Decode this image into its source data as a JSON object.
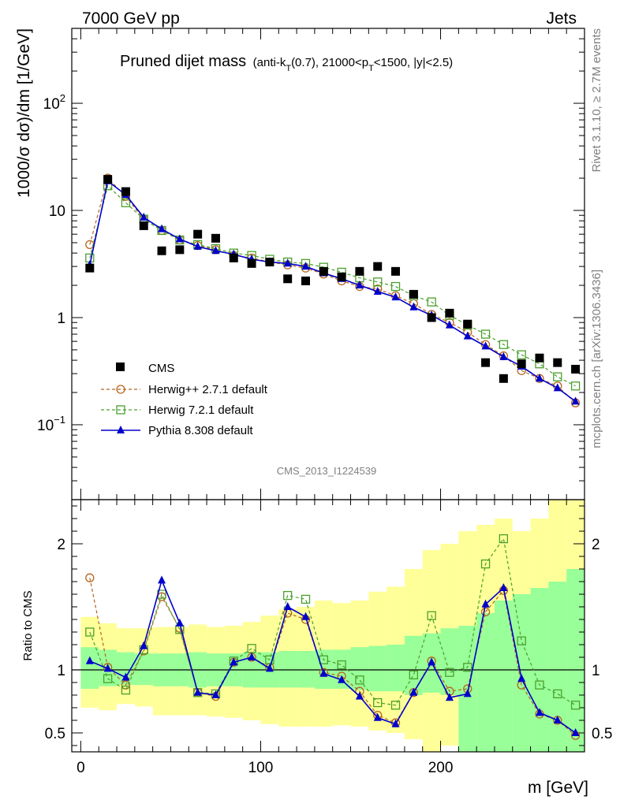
{
  "header": {
    "left": "7000 GeV pp",
    "right": "Jets"
  },
  "side_labels": {
    "rivet": "Rivet 3.1.10, ≥ 2.7M events",
    "mcplots": "mcplots.cern.ch [arXiv:1306.3436]"
  },
  "chart_data": {
    "type": "scatter",
    "title_main": "Pruned dijet mass",
    "title_sub_parts": [
      "(anti-k",
      "T",
      "(0.7), 21000<p",
      "T",
      "<1500, |y|<2.5)"
    ],
    "analysis_id": "CMS_2013_I1224539",
    "xlabel": "m [GeV]",
    "ylabel_top": "1000/σ dσ)/dm [1/GeV]",
    "ylabel_top_prefix": "1000/",
    "ylabel_bottom": "Ratio to CMS",
    "xlim": [
      -5,
      280
    ],
    "ylim_top": [
      0.02,
      500
    ],
    "yscale_top": "log",
    "ylim_ratio": [
      0.35,
      2.35
    ],
    "x_ticks": [
      0,
      100,
      200
    ],
    "x_tick_labels": [
      "0",
      "100",
      "200"
    ],
    "y_top_ticks": [
      {
        "value": 0.1,
        "base": "10",
        "exp": "−1"
      },
      {
        "value": 1,
        "base": "1",
        "exp": ""
      },
      {
        "value": 10,
        "base": "10",
        "exp": ""
      },
      {
        "value": 100,
        "base": "10",
        "exp": "2"
      }
    ],
    "ratio_ticks": [
      {
        "value": 0.5,
        "label": "0.5"
      },
      {
        "value": 1,
        "label": "1"
      },
      {
        "value": 2,
        "label": "2"
      }
    ],
    "legend": {
      "placement": "lower-left",
      "entries": [
        "CMS",
        "Herwig++ 2.7.1 default",
        "Herwig 7.2.1 default",
        "Pythia 8.308 default"
      ]
    },
    "colors": {
      "cms": "#000000",
      "herwigpp": "#b5651d",
      "herwig7": "#4aa02c",
      "pythia": "#0000cc",
      "band_inner": "#99ff99",
      "band_outer": "#ffff99"
    },
    "x": [
      5,
      15,
      25,
      35,
      45,
      55,
      65,
      75,
      85,
      95,
      105,
      115,
      125,
      135,
      145,
      155,
      165,
      175,
      185,
      195,
      205,
      215,
      225,
      235,
      245,
      255,
      265,
      275
    ],
    "bin_edges": [
      0,
      10,
      20,
      30,
      40,
      50,
      60,
      70,
      80,
      90,
      100,
      110,
      120,
      130,
      140,
      150,
      160,
      170,
      180,
      190,
      200,
      210,
      220,
      230,
      240,
      250,
      260,
      270,
      280
    ],
    "series": [
      {
        "name": "CMS",
        "values": [
          2.9,
          19.5,
          15.0,
          7.2,
          4.2,
          4.3,
          6.0,
          5.5,
          3.6,
          3.2,
          3.3,
          2.3,
          2.2,
          2.7,
          2.4,
          2.7,
          3.0,
          2.7,
          1.65,
          1.0,
          1.1,
          0.87,
          0.38,
          0.27,
          0.37,
          0.42,
          0.38,
          0.33
        ]
      },
      {
        "name": "Herwig++ 2.7.1 default",
        "values": [
          4.8,
          20.0,
          13.5,
          8.3,
          6.5,
          5.3,
          4.7,
          4.3,
          3.8,
          3.6,
          3.3,
          3.1,
          2.9,
          2.55,
          2.2,
          1.95,
          1.85,
          1.6,
          1.35,
          1.07,
          0.9,
          0.73,
          0.56,
          0.44,
          0.32,
          0.27,
          0.23,
          0.16
        ]
      },
      {
        "name": "Herwig 7.2.1 default",
        "values": [
          3.6,
          17.0,
          11.8,
          8.3,
          6.5,
          5.3,
          4.8,
          4.4,
          4.0,
          3.8,
          3.5,
          3.3,
          3.2,
          2.95,
          2.65,
          2.35,
          2.15,
          1.95,
          1.6,
          1.4,
          1.05,
          0.85,
          0.7,
          0.56,
          0.45,
          0.37,
          0.28,
          0.23
        ]
      },
      {
        "name": "Pythia 8.308 default",
        "values": [
          3.1,
          18.8,
          14.0,
          8.6,
          6.7,
          5.4,
          4.6,
          4.2,
          3.9,
          3.5,
          3.3,
          3.2,
          3.0,
          2.6,
          2.3,
          2.0,
          1.75,
          1.55,
          1.25,
          1.05,
          0.85,
          0.67,
          0.54,
          0.43,
          0.35,
          0.27,
          0.22,
          0.165
        ]
      }
    ],
    "ratio_series": [
      {
        "name": "Herwig++ 2.7.1 default",
        "values": [
          1.73,
          1.02,
          0.88,
          1.15,
          1.58,
          1.33,
          0.82,
          0.79,
          1.06,
          1.1,
          1.02,
          1.45,
          1.4,
          0.98,
          0.95,
          0.83,
          0.64,
          0.58,
          0.82,
          1.07,
          0.83,
          0.85,
          1.46,
          1.63,
          0.88,
          0.65,
          0.6,
          0.48
        ]
      },
      {
        "name": "Herwig 7.2.1 default",
        "values": [
          1.3,
          0.93,
          0.84,
          1.16,
          1.6,
          1.32,
          0.82,
          0.81,
          1.07,
          1.17,
          1.08,
          1.59,
          1.56,
          1.08,
          1.04,
          0.92,
          0.74,
          0.72,
          0.96,
          1.43,
          0.98,
          1.02,
          1.84,
          2.04,
          1.23,
          0.88,
          0.81,
          0.72
        ]
      },
      {
        "name": "Pythia 8.308 default",
        "values": [
          1.07,
          1.01,
          0.94,
          1.19,
          1.71,
          1.37,
          0.82,
          0.8,
          1.06,
          1.1,
          1.01,
          1.5,
          1.42,
          0.97,
          0.92,
          0.79,
          0.62,
          0.57,
          0.82,
          1.06,
          0.78,
          0.81,
          1.52,
          1.65,
          0.93,
          0.66,
          0.6,
          0.5
        ]
      }
    ],
    "bands": {
      "inner": [
        [
          0.85,
          1.18
        ],
        [
          0.87,
          1.16
        ],
        [
          0.88,
          1.14
        ],
        [
          0.88,
          1.13
        ],
        [
          0.87,
          1.13
        ],
        [
          0.87,
          1.13
        ],
        [
          0.86,
          1.14
        ],
        [
          0.87,
          1.13
        ],
        [
          0.87,
          1.13
        ],
        [
          0.86,
          1.14
        ],
        [
          0.86,
          1.14
        ],
        [
          0.86,
          1.15
        ],
        [
          0.86,
          1.15
        ],
        [
          0.85,
          1.16
        ],
        [
          0.85,
          1.16
        ],
        [
          0.84,
          1.18
        ],
        [
          0.83,
          1.19
        ],
        [
          0.83,
          1.2
        ],
        [
          0.8,
          1.27
        ],
        [
          0.82,
          1.29
        ],
        [
          0.8,
          1.33
        ],
        [
          0.35,
          1.35
        ],
        [
          0.35,
          1.45
        ],
        [
          0.35,
          1.55
        ],
        [
          0.35,
          1.6
        ],
        [
          0.35,
          1.65
        ],
        [
          0.35,
          1.7
        ],
        [
          0.35,
          1.8
        ]
      ],
      "outer": [
        [
          0.7,
          1.42
        ],
        [
          0.68,
          1.37
        ],
        [
          0.73,
          1.33
        ],
        [
          0.71,
          1.33
        ],
        [
          0.64,
          1.34
        ],
        [
          0.64,
          1.34
        ],
        [
          0.64,
          1.36
        ],
        [
          0.63,
          1.34
        ],
        [
          0.62,
          1.35
        ],
        [
          0.6,
          1.38
        ],
        [
          0.57,
          1.43
        ],
        [
          0.55,
          1.48
        ],
        [
          0.55,
          1.5
        ],
        [
          0.55,
          1.55
        ],
        [
          0.56,
          1.53
        ],
        [
          0.55,
          1.55
        ],
        [
          0.52,
          1.62
        ],
        [
          0.5,
          1.66
        ],
        [
          0.45,
          1.8
        ],
        [
          0.35,
          1.95
        ],
        [
          0.4,
          2.0
        ],
        [
          0.35,
          2.1
        ],
        [
          0.35,
          2.15
        ],
        [
          0.35,
          2.2
        ],
        [
          0.35,
          2.1
        ],
        [
          0.35,
          2.2
        ],
        [
          0.35,
          2.35
        ],
        [
          0.35,
          2.35
        ]
      ]
    }
  }
}
